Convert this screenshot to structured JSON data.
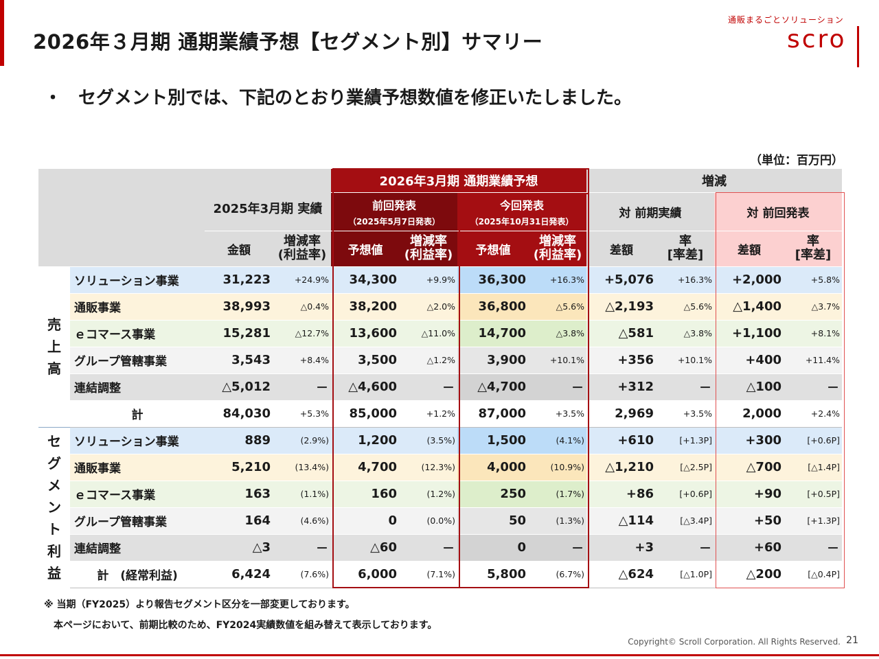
{
  "header": {
    "title": "2026年３月期 通期業績予想【セグメント別】サマリー",
    "logo_tagline": "通販まるごとソリューション",
    "logo_word": "scro"
  },
  "bullet": {
    "mark": "・",
    "text": "セグメント別では、下記のとおり業績予想数値を修正いたしました。"
  },
  "unit": "（単位：百万円）",
  "table_header": {
    "fy2025_actual": "2025年3月期 実績",
    "fy2026_forecast": "2026年3月期 通期業績予想",
    "prev_announce": "前回発表",
    "prev_announce_date": "（2025年5月7日発表）",
    "curr_announce": "今回発表",
    "curr_announce_date": "（2025年10月31日発表）",
    "change": "増減",
    "vs_prev_actual": "対 前期実績",
    "vs_prev_announce": "対 前回発表",
    "amount": "金額",
    "growth_rate_1": "増減率",
    "growth_rate_2": "(利益率)",
    "forecast_value": "予想値",
    "diff": "差額",
    "rate_1": "率",
    "rate_2": "[率差]"
  },
  "sections": {
    "sales": "売上高",
    "segment_profit": "セグメント利益"
  },
  "rows": {
    "sales": [
      {
        "name": "ソリューション事業",
        "actual": "31,223",
        "actual_rate": "+24.9%",
        "prev": "34,300",
        "prev_rate": "+9.9%",
        "curr": "36,300",
        "curr_rate": "+16.3%",
        "diff_py": "+5,076",
        "rate_py": "+16.3%",
        "diff_pa": "+2,000",
        "rate_pa": "+5.8%"
      },
      {
        "name": "通販事業",
        "actual": "38,993",
        "actual_rate": "△0.4%",
        "prev": "38,200",
        "prev_rate": "△2.0%",
        "curr": "36,800",
        "curr_rate": "△5.6%",
        "diff_py": "△2,193",
        "rate_py": "△5.6%",
        "diff_pa": "△1,400",
        "rate_pa": "△3.7%"
      },
      {
        "name": "ｅコマース事業",
        "actual": "15,281",
        "actual_rate": "△12.7%",
        "prev": "13,600",
        "prev_rate": "△11.0%",
        "curr": "14,700",
        "curr_rate": "△3.8%",
        "diff_py": "△581",
        "rate_py": "△3.8%",
        "diff_pa": "+1,100",
        "rate_pa": "+8.1%"
      },
      {
        "name": "グループ管轄事業",
        "actual": "3,543",
        "actual_rate": "+8.4%",
        "prev": "3,500",
        "prev_rate": "△1.2%",
        "curr": "3,900",
        "curr_rate": "+10.1%",
        "diff_py": "+356",
        "rate_py": "+10.1%",
        "diff_pa": "+400",
        "rate_pa": "+11.4%"
      },
      {
        "name": "連結調整",
        "actual": "△5,012",
        "actual_rate": "－",
        "prev": "△4,600",
        "prev_rate": "－",
        "curr": "△4,700",
        "curr_rate": "－",
        "diff_py": "+312",
        "rate_py": "－",
        "diff_pa": "△100",
        "rate_pa": "－"
      }
    ],
    "sales_total": {
      "name": "計",
      "actual": "84,030",
      "actual_rate": "+5.3%",
      "prev": "85,000",
      "prev_rate": "+1.2%",
      "curr": "87,000",
      "curr_rate": "+3.5%",
      "diff_py": "2,969",
      "rate_py": "+3.5%",
      "diff_pa": "2,000",
      "rate_pa": "+2.4%"
    },
    "profit": [
      {
        "name": "ソリューション事業",
        "actual": "889",
        "actual_rate": "(2.9%)",
        "prev": "1,200",
        "prev_rate": "(3.5%)",
        "curr": "1,500",
        "curr_rate": "(4.1%)",
        "diff_py": "+610",
        "rate_py": "[+1.3P]",
        "diff_pa": "+300",
        "rate_pa": "[+0.6P]"
      },
      {
        "name": "通販事業",
        "actual": "5,210",
        "actual_rate": "(13.4%)",
        "prev": "4,700",
        "prev_rate": "(12.3%)",
        "curr": "4,000",
        "curr_rate": "(10.9%)",
        "diff_py": "△1,210",
        "rate_py": "[△2.5P]",
        "diff_pa": "△700",
        "rate_pa": "[△1.4P]"
      },
      {
        "name": "ｅコマース事業",
        "actual": "163",
        "actual_rate": "(1.1%)",
        "prev": "160",
        "prev_rate": "(1.2%)",
        "curr": "250",
        "curr_rate": "(1.7%)",
        "diff_py": "+86",
        "rate_py": "[+0.6P]",
        "diff_pa": "+90",
        "rate_pa": "[+0.5P]"
      },
      {
        "name": "グループ管轄事業",
        "actual": "164",
        "actual_rate": "(4.6%)",
        "prev": "0",
        "prev_rate": "(0.0%)",
        "curr": "50",
        "curr_rate": "(1.3%)",
        "diff_py": "△114",
        "rate_py": "[△3.4P]",
        "diff_pa": "+50",
        "rate_pa": "[+1.3P]"
      },
      {
        "name": "連結調整",
        "actual": "△3",
        "actual_rate": "－",
        "prev": "△60",
        "prev_rate": "－",
        "curr": "0",
        "curr_rate": "－",
        "diff_py": "+3",
        "rate_py": "－",
        "diff_pa": "+60",
        "rate_pa": "－"
      }
    ],
    "profit_total": {
      "name": "計　(経常利益)",
      "actual": "6,424",
      "actual_rate": "(7.6%)",
      "prev": "6,000",
      "prev_rate": "(7.1%)",
      "curr": "5,800",
      "curr_rate": "(6.7%)",
      "diff_py": "△624",
      "rate_py": "[△1.0P]",
      "diff_pa": "△200",
      "rate_pa": "[△0.4P]"
    }
  },
  "notes": {
    "line1": "※ 当期（FY2025）より報告セグメント区分を一部変更しております。",
    "line2": "本ページにおいて、前期比較のため、FY2024実績数値を組み替えて表示しております。"
  },
  "footer": {
    "copyright": "Copyright© Scroll Corporation. All Rights Reserved.",
    "page": "21"
  }
}
